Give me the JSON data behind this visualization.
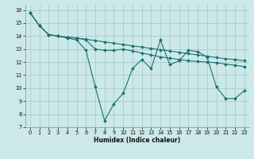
{
  "xlabel": "Humidex (Indice chaleur)",
  "background_color": "#cce8e8",
  "grid_color": "#aacccc",
  "line_color": "#1a7070",
  "xlim": [
    -0.5,
    23.5
  ],
  "ylim": [
    7,
    16.4
  ],
  "yticks": [
    7,
    8,
    9,
    10,
    11,
    12,
    13,
    14,
    15,
    16
  ],
  "xticks": [
    0,
    1,
    2,
    3,
    4,
    5,
    6,
    7,
    8,
    9,
    10,
    11,
    12,
    13,
    14,
    15,
    16,
    17,
    18,
    19,
    20,
    21,
    22,
    23
  ],
  "series1": [
    15.8,
    14.8,
    14.1,
    14.0,
    13.9,
    13.85,
    13.75,
    13.65,
    13.55,
    13.45,
    13.35,
    13.25,
    13.15,
    13.05,
    12.95,
    12.85,
    12.75,
    12.65,
    12.55,
    12.45,
    12.35,
    12.25,
    12.2,
    12.1
  ],
  "series2": [
    15.8,
    14.8,
    14.1,
    14.0,
    13.9,
    13.85,
    13.7,
    13.0,
    12.9,
    12.9,
    13.0,
    12.85,
    12.7,
    12.55,
    12.4,
    12.3,
    12.2,
    12.1,
    12.05,
    12.0,
    11.95,
    11.85,
    11.75,
    11.65
  ],
  "series3": [
    15.8,
    14.8,
    14.1,
    14.0,
    13.85,
    13.7,
    12.9,
    10.1,
    7.5,
    8.8,
    9.6,
    11.5,
    12.2,
    11.5,
    13.7,
    11.8,
    12.1,
    12.9,
    12.8,
    12.4,
    10.1,
    9.2,
    9.2,
    9.8
  ]
}
